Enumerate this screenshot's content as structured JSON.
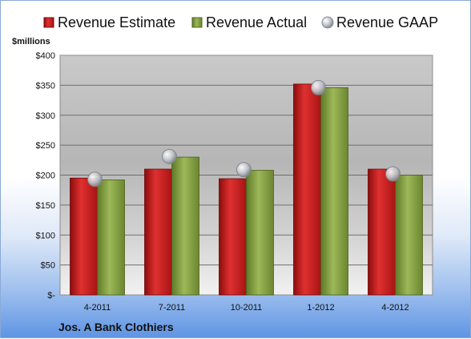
{
  "chart_data": {
    "type": "bar",
    "title": "",
    "company": "Jos. A Bank Clothiers",
    "unit_label": "$millions",
    "categories": [
      "4-2011",
      "7-2011",
      "10-2011",
      "1-2012",
      "4-2012"
    ],
    "series": [
      {
        "name": "Revenue Estimate",
        "kind": "bar",
        "color": "#d42020",
        "values": [
          195,
          210,
          194,
          352,
          210
        ]
      },
      {
        "name": "Revenue Actual",
        "kind": "bar",
        "color": "#8fab4a",
        "values": [
          192,
          230,
          208,
          346,
          200
        ]
      },
      {
        "name": "Revenue GAAP",
        "kind": "marker",
        "color": "#b8bcc4",
        "values": [
          193,
          231,
          209,
          346,
          202
        ]
      }
    ],
    "ylim": [
      0,
      400
    ],
    "y_ticks": [
      0,
      50,
      100,
      150,
      200,
      250,
      300,
      350,
      400
    ],
    "y_tick_labels": [
      "$-",
      "$50",
      "$100",
      "$150",
      "$200",
      "$250",
      "$300",
      "$350",
      "$400"
    ],
    "grid": true,
    "legend_position": "top"
  }
}
